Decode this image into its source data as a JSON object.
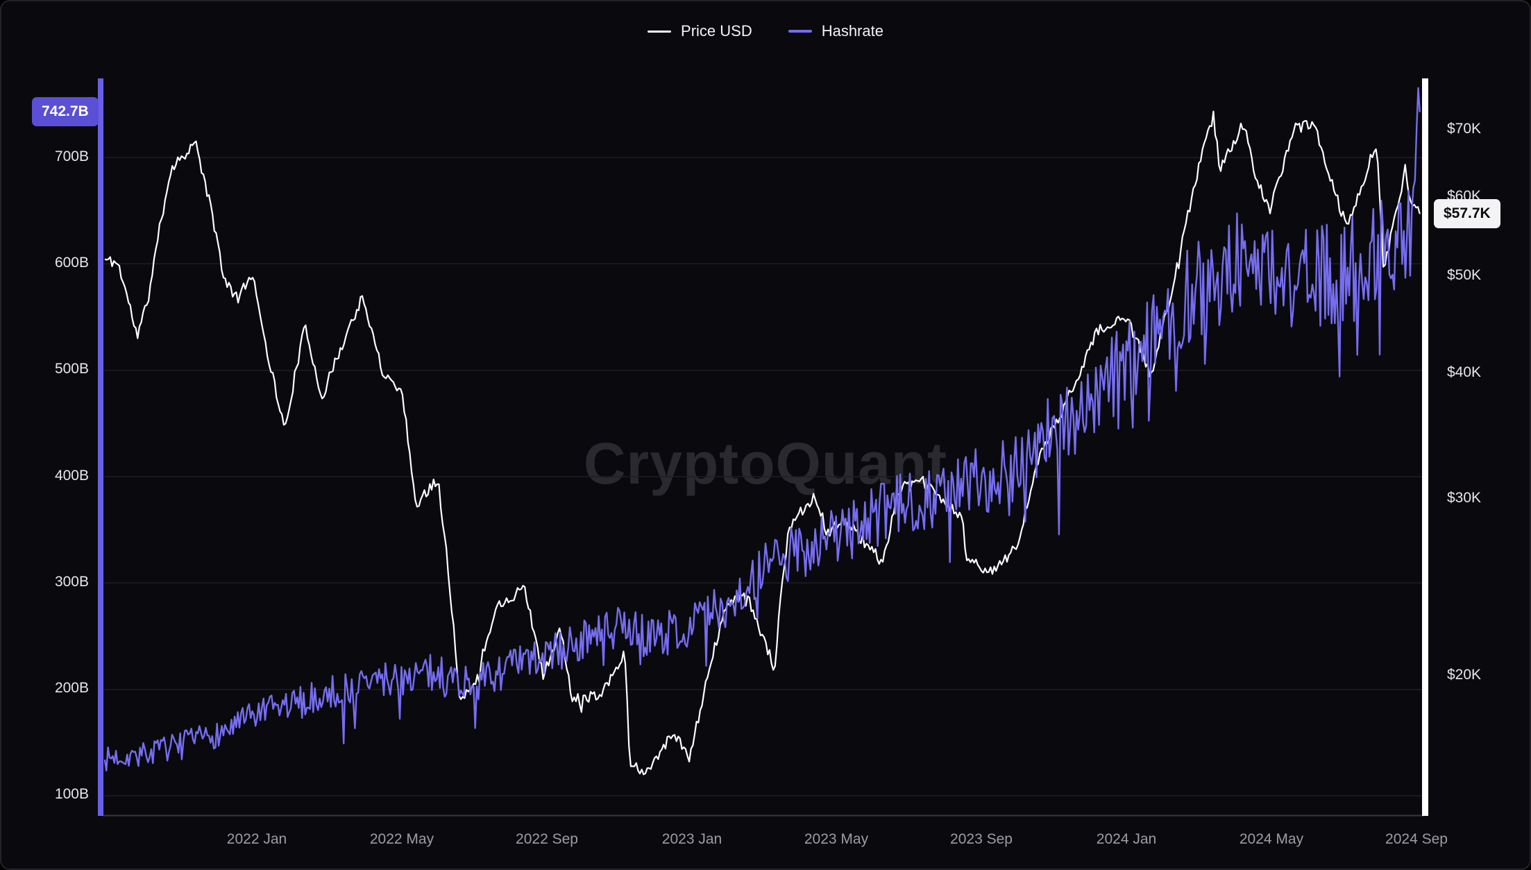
{
  "app": {
    "watermark_text": "CryptoQuant"
  },
  "colors": {
    "background": "#0a0a0e",
    "price_line": "#ffffff",
    "hashrate_line": "#766df0",
    "hashrate_badge_bg": "#5b4fd6",
    "price_badge_bg": "#f3f3f6",
    "gridline": "#1d1d23"
  },
  "legend": {
    "items": [
      {
        "label": "Price USD",
        "color": "#ffffff"
      },
      {
        "label": "Hashrate",
        "color": "#766df0"
      }
    ]
  },
  "badges": {
    "hashrate_current": "742.7B",
    "price_current": "$57.7K"
  },
  "axes": {
    "left": {
      "ticks": [
        "700B",
        "600B",
        "500B",
        "400B",
        "300B",
        "200B",
        "100B"
      ]
    },
    "right": {
      "ticks": [
        "$70K",
        "$60K",
        "$50K",
        "$40K",
        "$30K",
        "$20K"
      ]
    },
    "x": {
      "ticks": [
        "2022 Jan",
        "2022 May",
        "2022 Sep",
        "2023 Jan",
        "2023 May",
        "2023 Sep",
        "2024 Jan",
        "2024 May",
        "2024 Sep"
      ]
    }
  },
  "chart_data": {
    "type": "line",
    "title": "",
    "watermark": "CryptoQuant",
    "x_axis": {
      "unit": "months since 2021-09-01",
      "tick_positions": [
        4,
        8,
        12,
        16,
        20,
        24,
        28,
        32,
        36
      ],
      "tick_labels": [
        "2022 Jan",
        "2022 May",
        "2022 Sep",
        "2023 Jan",
        "2023 May",
        "2023 Sep",
        "2024 Jan",
        "2024 May",
        "2024 Sep"
      ]
    },
    "left_axis": {
      "name": "Hashrate",
      "unit": "B",
      "scale": "linear",
      "ticks": [
        700,
        600,
        500,
        400,
        300,
        200,
        100
      ],
      "range": [
        100,
        760
      ],
      "current": 742.7,
      "grid": true
    },
    "right_axis": {
      "name": "Price USD",
      "unit": "USD",
      "scale": "log",
      "ticks": [
        70000,
        60000,
        50000,
        40000,
        30000,
        20000
      ],
      "range": [
        14000,
        76000
      ],
      "current": 57700,
      "grid": false
    },
    "legend_position": "top-center",
    "series": [
      {
        "id": "price-usd",
        "name": "Price USD",
        "axis": "right",
        "scale": "log",
        "color": "#ffffff",
        "width": 2.2,
        "seed": 11,
        "samples": 720,
        "noise": 0.013,
        "spike_prob": 0.015,
        "anchors": [
          [
            -0.2,
            52000
          ],
          [
            0.17,
            51500
          ],
          [
            0.7,
            43500
          ],
          [
            1.0,
            47500
          ],
          [
            1.63,
            64000
          ],
          [
            2.3,
            68000
          ],
          [
            2.9,
            54500
          ],
          [
            3.1,
            49500
          ],
          [
            3.5,
            47500
          ],
          [
            3.87,
            50500
          ],
          [
            4.3,
            41800
          ],
          [
            4.77,
            35000
          ],
          [
            5.33,
            44500
          ],
          [
            5.8,
            37800
          ],
          [
            6.9,
            47500
          ],
          [
            7.5,
            40000
          ],
          [
            8.0,
            38500
          ],
          [
            8.4,
            29500
          ],
          [
            9.0,
            31500
          ],
          [
            9.43,
            22500
          ],
          [
            9.6,
            18800
          ],
          [
            10.0,
            19500
          ],
          [
            10.63,
            23500
          ],
          [
            11.4,
            24400
          ],
          [
            11.9,
            20000
          ],
          [
            12.4,
            22200
          ],
          [
            12.7,
            18900
          ],
          [
            13.5,
            19200
          ],
          [
            14.17,
            21000
          ],
          [
            14.3,
            16500
          ],
          [
            14.7,
            15900
          ],
          [
            15.5,
            17600
          ],
          [
            15.97,
            16550
          ],
          [
            16.4,
            19500
          ],
          [
            16.93,
            23300
          ],
          [
            17.5,
            24200
          ],
          [
            18.3,
            20300
          ],
          [
            18.7,
            28200
          ],
          [
            19.43,
            30300
          ],
          [
            19.77,
            27600
          ],
          [
            20.2,
            28700
          ],
          [
            21.3,
            25900
          ],
          [
            21.73,
            30700
          ],
          [
            22.4,
            31200
          ],
          [
            23.5,
            28600
          ],
          [
            23.6,
            26200
          ],
          [
            24.33,
            25300
          ],
          [
            25.0,
            27000
          ],
          [
            25.73,
            33800
          ],
          [
            26.27,
            36700
          ],
          [
            27.23,
            44100
          ],
          [
            28.03,
            45400
          ],
          [
            28.73,
            39700
          ],
          [
            29.37,
            49900
          ],
          [
            29.9,
            61500
          ],
          [
            30.43,
            72400
          ],
          [
            30.6,
            63800
          ],
          [
            31.27,
            71200
          ],
          [
            31.57,
            62700
          ],
          [
            32.0,
            58200
          ],
          [
            32.67,
            70400
          ],
          [
            33.2,
            70800
          ],
          [
            33.77,
            60700
          ],
          [
            34.13,
            55700
          ],
          [
            34.93,
            67800
          ],
          [
            35.13,
            50200
          ],
          [
            35.73,
            63900
          ],
          [
            35.9,
            58600
          ],
          [
            36.13,
            57700
          ]
        ]
      },
      {
        "id": "hashrate",
        "name": "Hashrate",
        "axis": "left",
        "scale": "linear",
        "color": "#766df0",
        "width": 2.4,
        "seed": 7,
        "samples": 820,
        "noise": 0.082,
        "spike_prob": 0.06,
        "anchors": [
          [
            -0.2,
            134
          ],
          [
            0,
            136
          ],
          [
            1,
            140
          ],
          [
            2,
            149
          ],
          [
            3,
            159
          ],
          [
            4,
            176
          ],
          [
            5,
            186
          ],
          [
            6,
            196
          ],
          [
            7,
            206
          ],
          [
            8,
            212
          ],
          [
            9,
            216
          ],
          [
            10,
            204
          ],
          [
            11,
            221
          ],
          [
            12,
            231
          ],
          [
            13,
            246
          ],
          [
            14,
            256
          ],
          [
            15,
            249
          ],
          [
            16,
            261
          ],
          [
            17,
            281
          ],
          [
            18,
            311
          ],
          [
            19,
            331
          ],
          [
            20,
            346
          ],
          [
            21,
            361
          ],
          [
            22,
            376
          ],
          [
            23,
            386
          ],
          [
            24,
            396
          ],
          [
            25,
            416
          ],
          [
            26,
            446
          ],
          [
            27,
            466
          ],
          [
            28,
            506
          ],
          [
            29,
            546
          ],
          [
            30,
            576
          ],
          [
            31,
            601
          ],
          [
            32,
            596
          ],
          [
            33,
            586
          ],
          [
            34,
            591
          ],
          [
            35,
            616
          ],
          [
            36,
            641
          ],
          [
            36.13,
            742.7
          ]
        ]
      }
    ]
  }
}
